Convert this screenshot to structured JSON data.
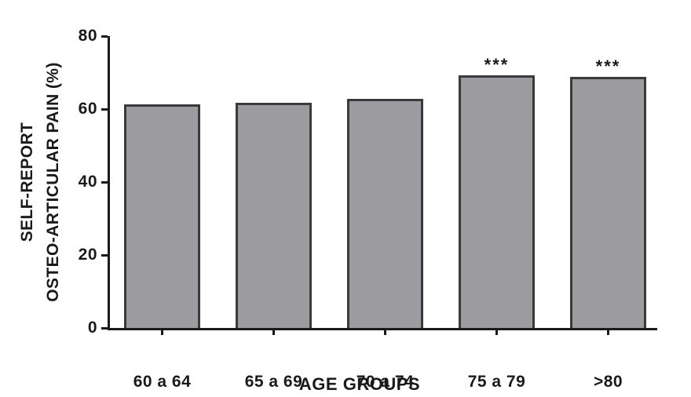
{
  "chart_data": {
    "type": "bar",
    "title": "",
    "categories": [
      "60 a 64",
      "65 a 69",
      "70 a 74",
      "75 a 79",
      ">80"
    ],
    "values": [
      61.4,
      61.7,
      62.9,
      69.3,
      68.9
    ],
    "significance": [
      "",
      "",
      "",
      "***",
      "***"
    ],
    "xlabel": "AGE GROUPS",
    "ylabel_line1": "SELF-REPORT",
    "ylabel_line2": "OSTEO-ARTICULAR PAIN (%)",
    "ylim": [
      0,
      80
    ],
    "yticks": [
      0,
      20,
      40,
      60,
      80
    ],
    "legend": "none",
    "grid": false,
    "colors": {
      "bar_fill": "#9c9ca0",
      "bar_border": "#3a3a3c",
      "axis": "#1a1a1a",
      "background": "#ffffff"
    }
  }
}
